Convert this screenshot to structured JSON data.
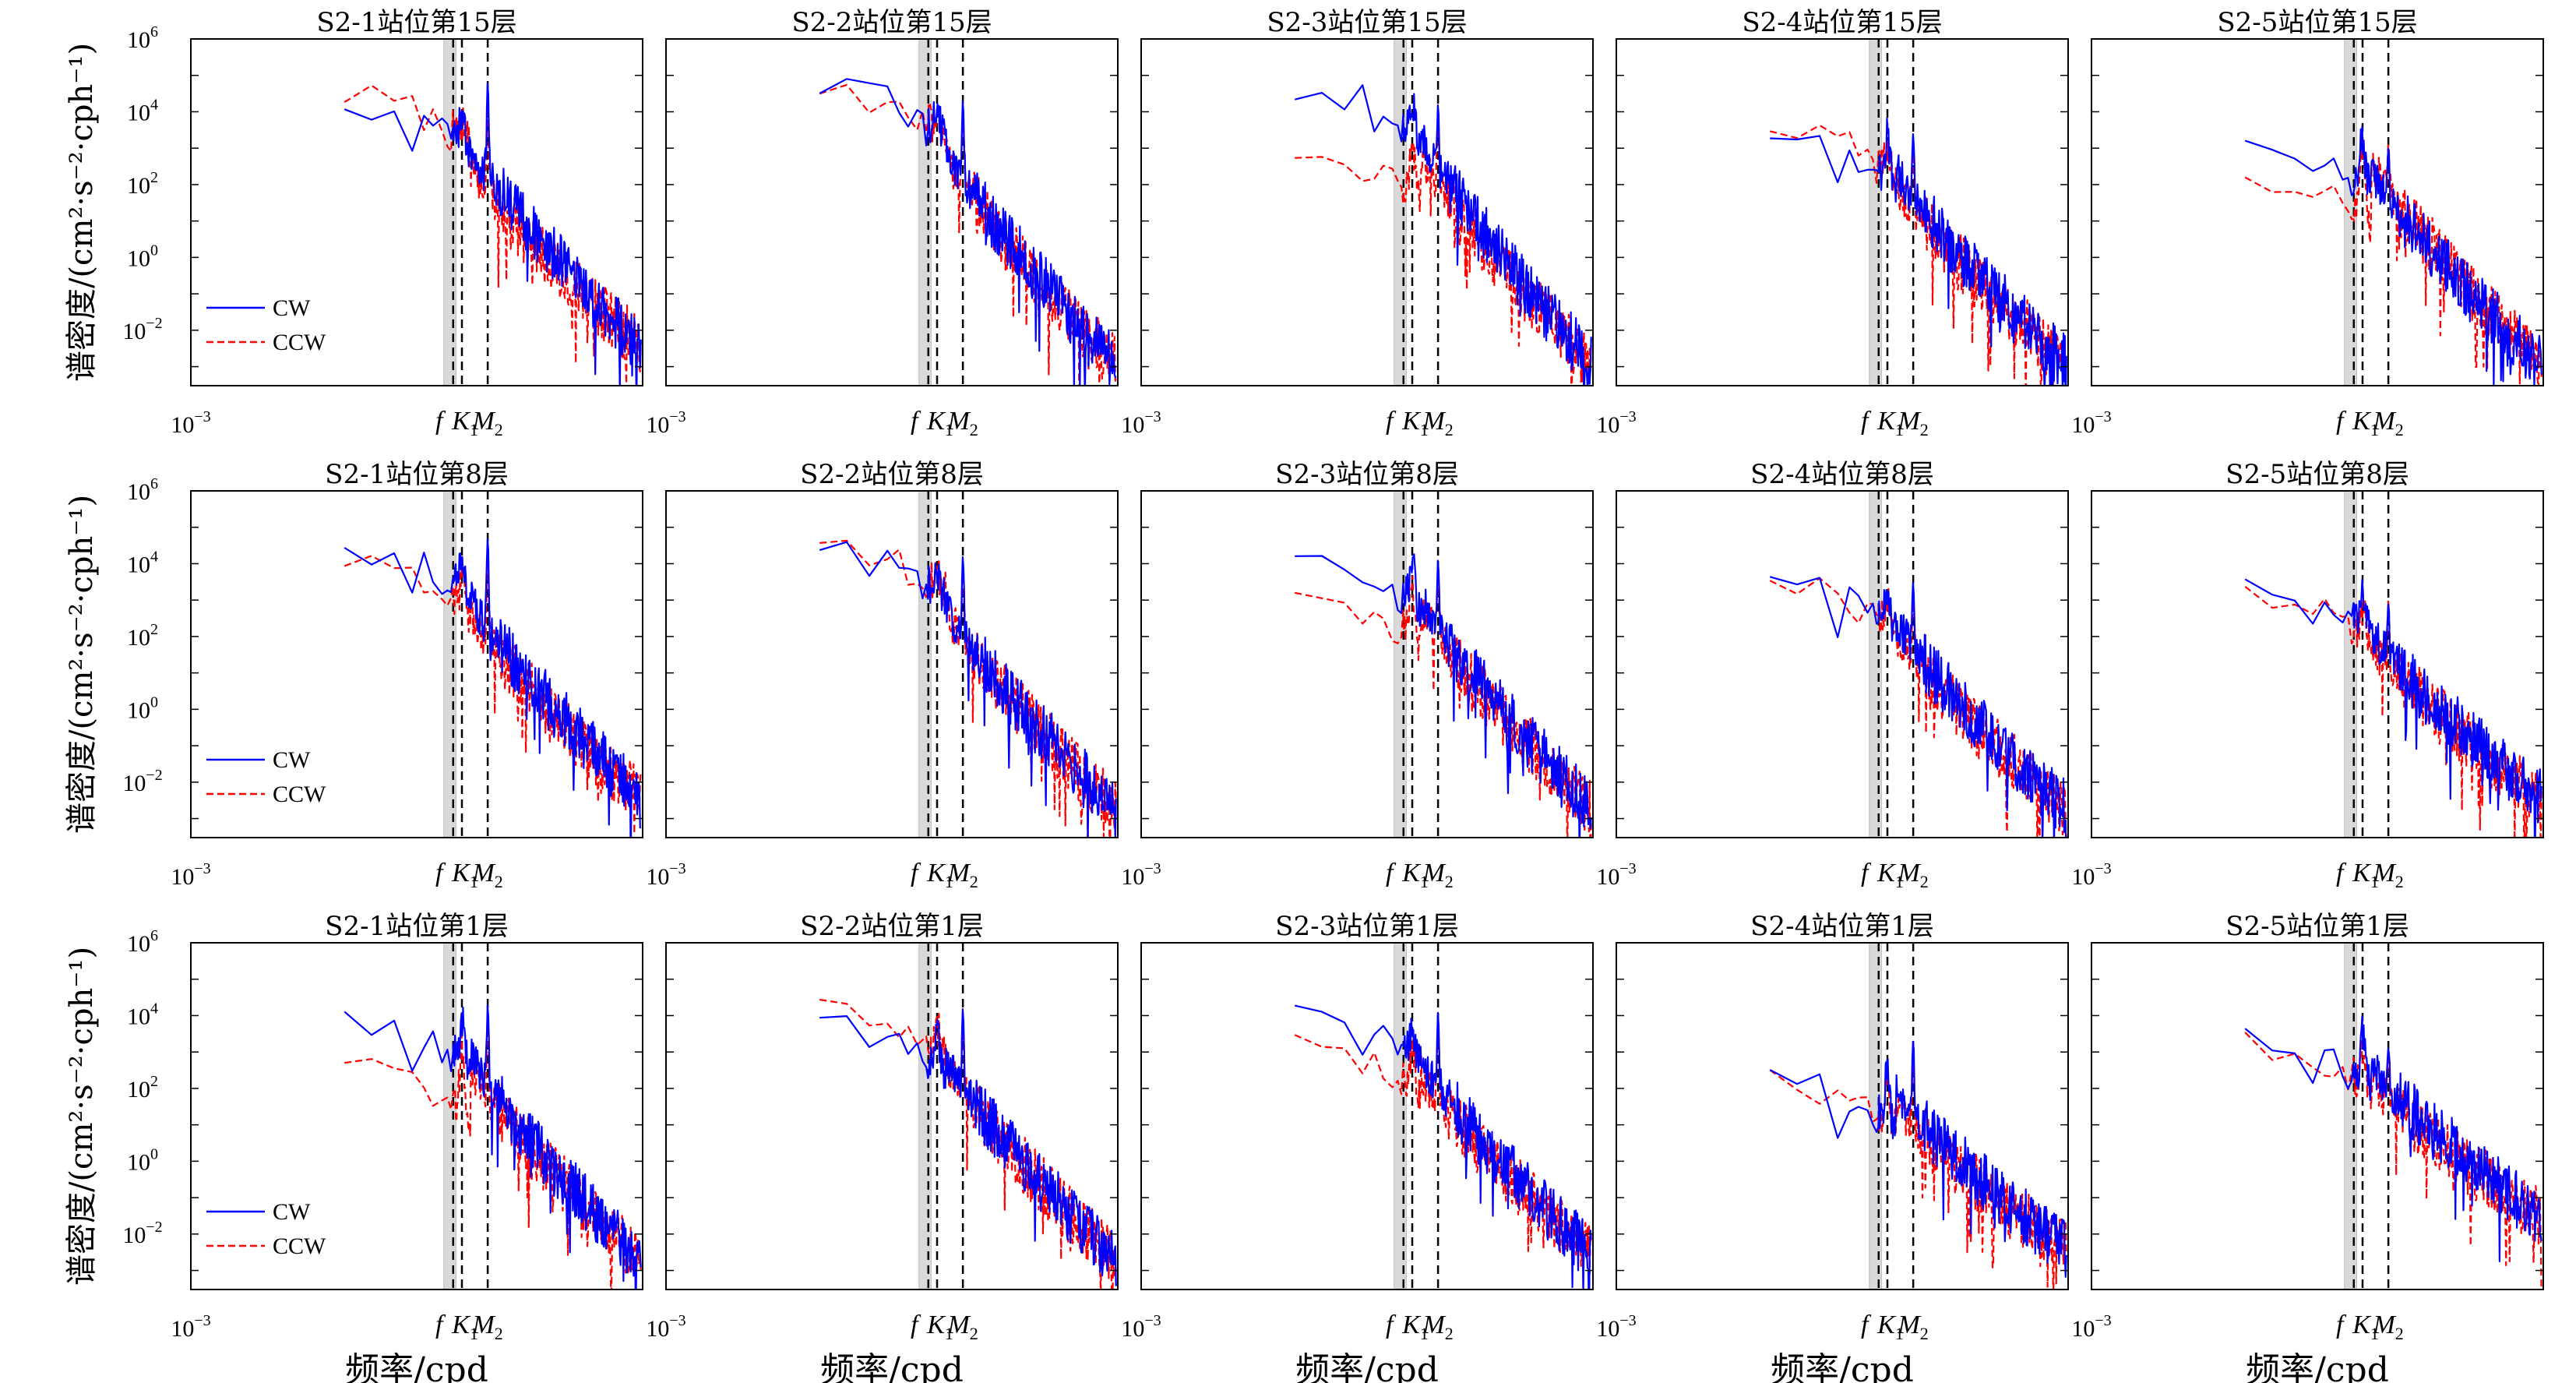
{
  "figure": {
    "ylabel": "谱密度/(cm²·s⁻²·cph⁻¹)",
    "xlabel": "频率/cpd"
  },
  "chart_data": {
    "type": "line",
    "x_scale": "log",
    "y_scale": "log",
    "xlim": [
      0.001,
      100
    ],
    "ylim": [
      0.0003,
      1000000
    ],
    "y_ticks": [
      "10^-2",
      "10^0",
      "10^2",
      "10^4",
      "10^6"
    ],
    "x_tick_label": "10^-3",
    "freq_markers": [
      {
        "label": "f",
        "x": 0.8
      },
      {
        "label": "K",
        "sub": "1",
        "x": 1.0
      },
      {
        "label": "M",
        "sub": "2",
        "x": 1.93
      }
    ],
    "legend": {
      "position": "bottom-left",
      "entries": [
        "CW",
        "CCW"
      ]
    },
    "series_colors": {
      "CW": "#0000ff",
      "CCW": "#ff0000"
    },
    "panels": [
      {
        "title": "S2-1站位第15层",
        "cw_base": 4.3,
        "ccw_base": 4.5,
        "cw_k1": 3.8,
        "ccw_k1": 3.3,
        "cw_m2": 4.8,
        "ccw_m2": 4.3,
        "tail": -2.5,
        "dip": 1.4
      },
      {
        "title": "S2-2站位第15层",
        "cw_base": 4.7,
        "ccw_base": 4.7,
        "cw_k1": 3.8,
        "ccw_k1": 3.6,
        "cw_m2": 4.3,
        "ccw_m2": 4.1,
        "tail": -3.0,
        "dip": 0.0
      },
      {
        "title": "S2-3站位第15层",
        "cw_base": 4.5,
        "ccw_base": 2.9,
        "cw_k1": 4.2,
        "ccw_k1": 3.6,
        "cw_m2": 4.2,
        "ccw_m2": 4.0,
        "tail": -3.0,
        "dip": -1.0
      },
      {
        "title": "S2-4站位第15层",
        "cw_base": 3.4,
        "ccw_base": 3.6,
        "cw_k1": 3.2,
        "ccw_k1": 2.8,
        "cw_m2": 3.4,
        "ccw_m2": 3.0,
        "tail": -3.0,
        "dip": 1.0
      },
      {
        "title": "S2-5站位第15层",
        "cw_base": 3.3,
        "ccw_base": 2.3,
        "cw_k1": 3.2,
        "ccw_k1": 3.4,
        "cw_m2": 3.0,
        "ccw_m2": 3.1,
        "tail": -3.0,
        "dip": 1.2
      },
      {
        "title": "S2-1站位第8层",
        "cw_base": 4.5,
        "ccw_base": 4.0,
        "cw_k1": 3.8,
        "ccw_k1": 3.4,
        "cw_m2": 4.7,
        "ccw_m2": 4.2,
        "tail": -2.5,
        "dip": 1.2
      },
      {
        "title": "S2-2站位第8层",
        "cw_base": 4.4,
        "ccw_base": 4.6,
        "cw_k1": 3.6,
        "ccw_k1": 3.5,
        "cw_m2": 4.2,
        "ccw_m2": 4.0,
        "tail": -2.8,
        "dip": 0.0
      },
      {
        "title": "S2-3站位第8层",
        "cw_base": 4.2,
        "ccw_base": 3.2,
        "cw_k1": 3.9,
        "ccw_k1": 3.6,
        "cw_m2": 4.1,
        "ccw_m2": 3.9,
        "tail": -2.8,
        "dip": 0.5
      },
      {
        "title": "S2-4站位第8层",
        "cw_base": 3.6,
        "ccw_base": 3.5,
        "cw_k1": 3.2,
        "ccw_k1": 2.8,
        "cw_m2": 3.5,
        "ccw_m2": 3.0,
        "tail": -2.8,
        "dip": 1.4
      },
      {
        "title": "S2-5站位第8层",
        "cw_base": 3.5,
        "ccw_base": 3.3,
        "cw_k1": 2.9,
        "ccw_k1": 2.6,
        "cw_m2": 2.9,
        "ccw_m2": 3.0,
        "tail": -2.5,
        "dip": 1.5
      },
      {
        "title": "S2-1站位第1层",
        "cw_base": 4.0,
        "ccw_base": 2.6,
        "cw_k1": 3.7,
        "ccw_k1": 3.3,
        "cw_m2": 4.3,
        "ccw_m2": 4.0,
        "tail": -2.8,
        "dip": 1.5
      },
      {
        "title": "S2-2站位第1层",
        "cw_base": 3.8,
        "ccw_base": 4.3,
        "cw_k1": 3.6,
        "ccw_k1": 3.5,
        "cw_m2": 4.2,
        "ccw_m2": 4.0,
        "tail": -2.8,
        "dip": 0.5
      },
      {
        "title": "S2-3站位第1层",
        "cw_base": 4.1,
        "ccw_base": 3.3,
        "cw_k1": 3.6,
        "ccw_k1": 3.2,
        "cw_m2": 4.1,
        "ccw_m2": 3.8,
        "tail": -2.6,
        "dip": 1.2
      },
      {
        "title": "S2-4站位第1层",
        "cw_base": 2.3,
        "ccw_base": 2.3,
        "cw_k1": 2.7,
        "ccw_k1": 2.3,
        "cw_m2": 3.3,
        "ccw_m2": 2.8,
        "tail": -2.5,
        "dip": 1.4
      },
      {
        "title": "S2-5站位第1层",
        "cw_base": 3.4,
        "ccw_base": 3.3,
        "cw_k1": 3.4,
        "ccw_k1": 3.0,
        "cw_m2": 3.1,
        "ccw_m2": 3.0,
        "tail": -1.6,
        "dip": 1.6
      }
    ]
  }
}
